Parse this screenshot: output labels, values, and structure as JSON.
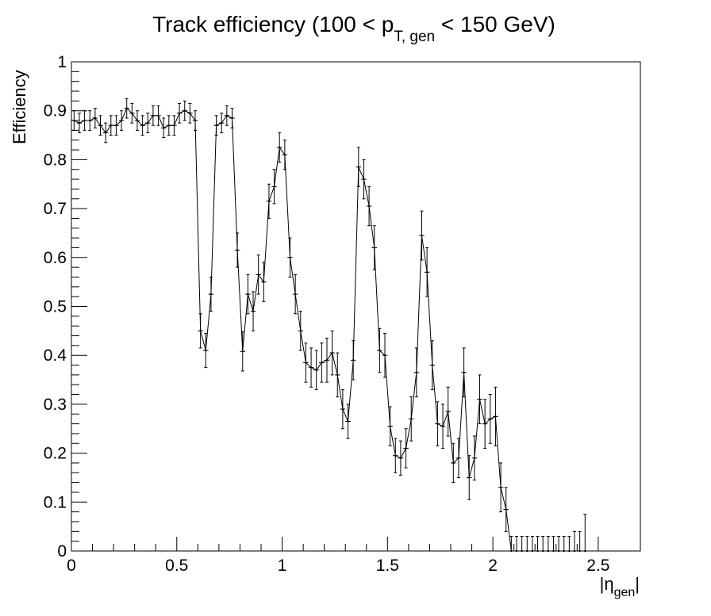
{
  "chart_data": {
    "type": "errorbar",
    "title_parts": [
      "Track efficiency (100 < p",
      "T, gen",
      " < 150 GeV)"
    ],
    "x_label_parts": [
      "|η",
      "gen",
      "|"
    ],
    "y_label": "Efficiency",
    "xlim": [
      0,
      2.7
    ],
    "ylim": [
      0,
      1
    ],
    "xticks": [
      0,
      0.5,
      1,
      1.5,
      2,
      2.5
    ],
    "yticks": [
      0,
      0.1,
      0.2,
      0.3,
      0.4,
      0.5,
      0.6,
      0.7,
      0.8,
      0.9,
      1
    ],
    "x": [
      0.0125,
      0.0375,
      0.0625,
      0.0875,
      0.1125,
      0.1375,
      0.1625,
      0.1875,
      0.2125,
      0.2375,
      0.2625,
      0.2875,
      0.3125,
      0.3375,
      0.3625,
      0.3875,
      0.4125,
      0.4375,
      0.4625,
      0.4875,
      0.5125,
      0.5375,
      0.5625,
      0.5875,
      0.6125,
      0.6375,
      0.6625,
      0.6875,
      0.7125,
      0.7375,
      0.7625,
      0.7875,
      0.8125,
      0.8375,
      0.8625,
      0.8875,
      0.9125,
      0.9375,
      0.9625,
      0.9875,
      1.0125,
      1.0375,
      1.0625,
      1.0875,
      1.1125,
      1.1375,
      1.1625,
      1.1875,
      1.2125,
      1.2375,
      1.2625,
      1.2875,
      1.3125,
      1.3375,
      1.3625,
      1.3875,
      1.4125,
      1.4375,
      1.4625,
      1.4875,
      1.5125,
      1.5375,
      1.5625,
      1.5875,
      1.6125,
      1.6375,
      1.6625,
      1.6875,
      1.7125,
      1.7375,
      1.7625,
      1.7875,
      1.8125,
      1.8375,
      1.8625,
      1.8875,
      1.9125,
      1.9375,
      1.9625,
      1.9875,
      2.0125,
      2.0375,
      2.0625,
      2.0875,
      2.1125,
      2.1375,
      2.1625,
      2.1875,
      2.2125,
      2.2375,
      2.2625,
      2.2875,
      2.3125,
      2.3375,
      2.3625,
      2.3875,
      2.4125,
      2.4375
    ],
    "series": [
      {
        "color": "#000000",
        "values": [
          0.88,
          0.875,
          0.88,
          0.88,
          0.885,
          0.87,
          0.855,
          0.87,
          0.87,
          0.88,
          0.905,
          0.895,
          0.88,
          0.87,
          0.875,
          0.89,
          0.89,
          0.865,
          0.87,
          0.87,
          0.895,
          0.9,
          0.895,
          0.88,
          0.45,
          0.41,
          0.525,
          0.87,
          0.875,
          0.89,
          0.885,
          0.615,
          0.408,
          0.525,
          0.49,
          0.565,
          0.55,
          0.715,
          0.745,
          0.825,
          0.81,
          0.6,
          0.525,
          0.45,
          0.385,
          0.375,
          0.37,
          0.385,
          0.39,
          0.405,
          0.36,
          0.29,
          0.265,
          0.39,
          0.785,
          0.76,
          0.705,
          0.62,
          0.41,
          0.4,
          0.255,
          0.195,
          0.19,
          0.21,
          0.27,
          0.365,
          0.645,
          0.57,
          0.38,
          0.26,
          0.255,
          0.285,
          0.18,
          0.19,
          0.365,
          0.15,
          0.19,
          0.31,
          0.26,
          0.27,
          0.275,
          0.13,
          0.085,
          0,
          0,
          0,
          0,
          0,
          0,
          0,
          0,
          0,
          0,
          0,
          0,
          0,
          0,
          0
        ],
        "errors": [
          0.02,
          0.02,
          0.02,
          0.02,
          0.02,
          0.02,
          0.02,
          0.02,
          0.02,
          0.02,
          0.02,
          0.02,
          0.02,
          0.02,
          0.02,
          0.02,
          0.02,
          0.02,
          0.02,
          0.02,
          0.02,
          0.02,
          0.02,
          0.02,
          0.035,
          0.035,
          0.035,
          0.02,
          0.02,
          0.02,
          0.02,
          0.035,
          0.04,
          0.04,
          0.04,
          0.04,
          0.04,
          0.035,
          0.035,
          0.03,
          0.03,
          0.04,
          0.04,
          0.04,
          0.04,
          0.04,
          0.04,
          0.04,
          0.045,
          0.045,
          0.045,
          0.04,
          0.035,
          0.04,
          0.04,
          0.04,
          0.04,
          0.045,
          0.045,
          0.045,
          0.04,
          0.035,
          0.035,
          0.04,
          0.045,
          0.05,
          0.05,
          0.05,
          0.05,
          0.045,
          0.045,
          0.05,
          0.04,
          0.04,
          0.05,
          0.045,
          0.045,
          0.05,
          0.05,
          0.05,
          0.06,
          0.05,
          0.045,
          0.03,
          0.03,
          0.03,
          0.03,
          0.03,
          0.03,
          0.03,
          0.03,
          0.03,
          0.03,
          0.03,
          0.03,
          0.04,
          0.04,
          0.075
        ]
      }
    ]
  }
}
